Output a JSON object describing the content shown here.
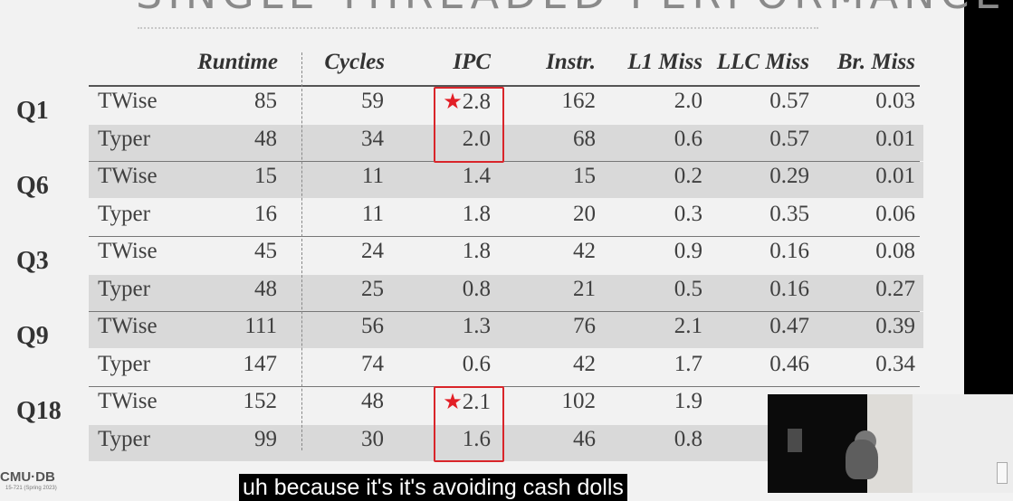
{
  "slide": {
    "title": "SINGLE-THREADED PERFORMANCE",
    "logo": "CMU·DB",
    "logo_sub": "15-721 (Spring 2023)"
  },
  "columns": [
    "Runtime",
    "Cycles",
    "IPC",
    "Instr.",
    "L1 Miss",
    "LLC Miss",
    "Br. Miss"
  ],
  "queries": [
    {
      "label": "Q1",
      "rows": [
        {
          "system": "TWise",
          "runtime": "85",
          "cycles": "59",
          "ipc": "2.8",
          "instr": "162",
          "l1": "2.0",
          "llc": "0.57",
          "br": "0.03"
        },
        {
          "system": "Typer",
          "runtime": "48",
          "cycles": "34",
          "ipc": "2.0",
          "instr": "68",
          "l1": "0.6",
          "llc": "0.57",
          "br": "0.01"
        }
      ]
    },
    {
      "label": "Q6",
      "rows": [
        {
          "system": "TWise",
          "runtime": "15",
          "cycles": "11",
          "ipc": "1.4",
          "instr": "15",
          "l1": "0.2",
          "llc": "0.29",
          "br": "0.01"
        },
        {
          "system": "Typer",
          "runtime": "16",
          "cycles": "11",
          "ipc": "1.8",
          "instr": "20",
          "l1": "0.3",
          "llc": "0.35",
          "br": "0.06"
        }
      ]
    },
    {
      "label": "Q3",
      "rows": [
        {
          "system": "TWise",
          "runtime": "45",
          "cycles": "24",
          "ipc": "1.8",
          "instr": "42",
          "l1": "0.9",
          "llc": "0.16",
          "br": "0.08"
        },
        {
          "system": "Typer",
          "runtime": "48",
          "cycles": "25",
          "ipc": "0.8",
          "instr": "21",
          "l1": "0.5",
          "llc": "0.16",
          "br": "0.27"
        }
      ]
    },
    {
      "label": "Q9",
      "rows": [
        {
          "system": "TWise",
          "runtime": "111",
          "cycles": "56",
          "ipc": "1.3",
          "instr": "76",
          "l1": "2.1",
          "llc": "0.47",
          "br": "0.39"
        },
        {
          "system": "Typer",
          "runtime": "147",
          "cycles": "74",
          "ipc": "0.6",
          "instr": "42",
          "l1": "1.7",
          "llc": "0.46",
          "br": "0.34"
        }
      ]
    },
    {
      "label": "Q18",
      "rows": [
        {
          "system": "TWise",
          "runtime": "152",
          "cycles": "48",
          "ipc": "2.1",
          "instr": "102",
          "l1": "1.9",
          "llc": "",
          "br": ""
        },
        {
          "system": "Typer",
          "runtime": "99",
          "cycles": "30",
          "ipc": "1.6",
          "instr": "46",
          "l1": "0.8",
          "llc": "",
          "br": ""
        }
      ]
    }
  ],
  "highlights": {
    "starred_query_indices": [
      0,
      4
    ],
    "star_icon": "star-icon",
    "color": "#d9252a"
  },
  "caption": "uh because it's it's avoiding cash dolls",
  "colors": {
    "background": "#f2f2f2",
    "shaded_row": "#d9d9d9",
    "highlight": "#d9252a"
  }
}
